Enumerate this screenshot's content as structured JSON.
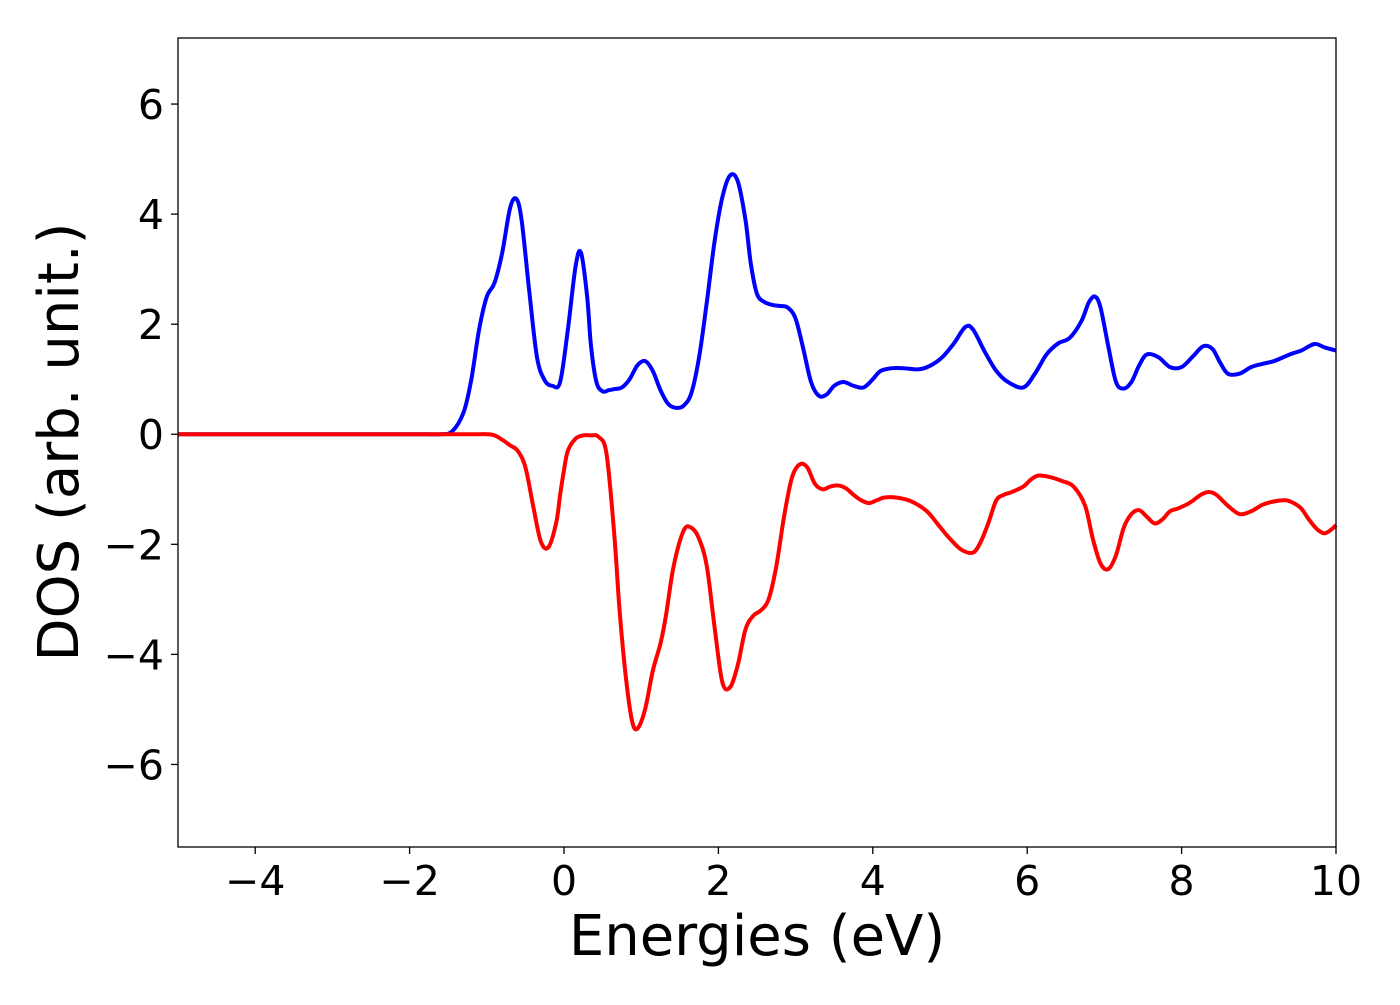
{
  "chart_data": {
    "type": "line",
    "xlabel": "Energies (eV)",
    "ylabel": "DOS (arb. unit.)",
    "xlim": [
      -5,
      10
    ],
    "ylim": [
      -7.5,
      7.2
    ],
    "xticks": [
      -4,
      -2,
      0,
      2,
      4,
      6,
      8,
      10
    ],
    "xtick_labels": [
      "−4",
      "−2",
      "0",
      "2",
      "4",
      "6",
      "8",
      "10"
    ],
    "yticks": [
      -6,
      -4,
      -2,
      0,
      2,
      4,
      6
    ],
    "ytick_labels": [
      "−6",
      "−4",
      "−2",
      "0",
      "2",
      "4",
      "6"
    ],
    "grid": false,
    "series": [
      {
        "color": "#0000ff",
        "x": [
          -5,
          -2,
          -1.8,
          -1.6,
          -1.45,
          -1.3,
          -1.2,
          -1.1,
          -1.0,
          -0.9,
          -0.8,
          -0.7,
          -0.62,
          -0.55,
          -0.45,
          -0.35,
          -0.25,
          -0.15,
          -0.05,
          0.05,
          0.15,
          0.22,
          0.3,
          0.35,
          0.42,
          0.5,
          0.58,
          0.65,
          0.75,
          0.85,
          0.95,
          1.05,
          1.15,
          1.25,
          1.35,
          1.45,
          1.55,
          1.65,
          1.75,
          1.85,
          1.95,
          2.05,
          2.15,
          2.25,
          2.35,
          2.42,
          2.5,
          2.6,
          2.7,
          2.8,
          2.9,
          3.0,
          3.1,
          3.2,
          3.3,
          3.4,
          3.5,
          3.62,
          3.75,
          3.88,
          4.0,
          4.1,
          4.25,
          4.4,
          4.6,
          4.75,
          4.9,
          5.05,
          5.2,
          5.3,
          5.45,
          5.6,
          5.75,
          5.95,
          6.1,
          6.25,
          6.4,
          6.55,
          6.7,
          6.8,
          6.88,
          6.95,
          7.05,
          7.15,
          7.25,
          7.35,
          7.45,
          7.55,
          7.7,
          7.85,
          8.0,
          8.15,
          8.28,
          8.4,
          8.5,
          8.6,
          8.75,
          8.9,
          9.05,
          9.2,
          9.4,
          9.55,
          9.72,
          9.85,
          10.0
        ],
        "y": [
          0,
          0,
          0.0,
          0.0,
          0.05,
          0.4,
          1.0,
          1.9,
          2.5,
          2.75,
          3.3,
          4.1,
          4.28,
          3.9,
          2.6,
          1.4,
          0.98,
          0.88,
          0.95,
          1.9,
          3.05,
          3.3,
          2.5,
          1.6,
          0.95,
          0.78,
          0.8,
          0.82,
          0.85,
          1.0,
          1.25,
          1.33,
          1.15,
          0.8,
          0.55,
          0.48,
          0.52,
          0.75,
          1.4,
          2.4,
          3.5,
          4.3,
          4.7,
          4.6,
          3.9,
          3.1,
          2.55,
          2.4,
          2.35,
          2.33,
          2.3,
          2.1,
          1.55,
          0.95,
          0.7,
          0.72,
          0.88,
          0.95,
          0.88,
          0.85,
          1.0,
          1.15,
          1.2,
          1.2,
          1.18,
          1.25,
          1.4,
          1.65,
          1.95,
          1.9,
          1.5,
          1.15,
          0.95,
          0.85,
          1.1,
          1.45,
          1.65,
          1.75,
          2.05,
          2.4,
          2.5,
          2.3,
          1.6,
          0.95,
          0.83,
          0.95,
          1.25,
          1.45,
          1.4,
          1.22,
          1.22,
          1.42,
          1.6,
          1.55,
          1.3,
          1.1,
          1.1,
          1.22,
          1.28,
          1.33,
          1.45,
          1.52,
          1.64,
          1.58,
          1.52
        ]
      },
      {
        "color": "#ff0000",
        "x": [
          -5,
          -1.5,
          -1.3,
          -1.15,
          -1.0,
          -0.9,
          -0.8,
          -0.7,
          -0.6,
          -0.5,
          -0.4,
          -0.3,
          -0.2,
          -0.1,
          -0.05,
          0.0,
          0.05,
          0.15,
          0.25,
          0.35,
          0.45,
          0.55,
          0.65,
          0.72,
          0.8,
          0.88,
          0.95,
          1.05,
          1.15,
          1.25,
          1.32,
          1.42,
          1.55,
          1.65,
          1.75,
          1.85,
          1.95,
          2.05,
          2.15,
          2.25,
          2.35,
          2.45,
          2.55,
          2.65,
          2.75,
          2.85,
          2.95,
          3.05,
          3.15,
          3.25,
          3.35,
          3.45,
          3.55,
          3.65,
          3.75,
          3.85,
          3.95,
          4.05,
          4.15,
          4.3,
          4.5,
          4.7,
          4.85,
          5.0,
          5.15,
          5.3,
          5.4,
          5.5,
          5.6,
          5.7,
          5.8,
          5.95,
          6.05,
          6.15,
          6.3,
          6.45,
          6.6,
          6.75,
          6.85,
          6.95,
          7.05,
          7.15,
          7.25,
          7.35,
          7.45,
          7.55,
          7.65,
          7.75,
          7.85,
          7.95,
          8.1,
          8.25,
          8.35,
          8.45,
          8.6,
          8.75,
          8.9,
          9.05,
          9.2,
          9.35,
          9.45,
          9.55,
          9.65,
          9.75,
          9.85,
          9.95,
          10.0
        ],
        "y": [
          0,
          0,
          0,
          0,
          0,
          -0.02,
          -0.1,
          -0.2,
          -0.3,
          -0.6,
          -1.3,
          -1.95,
          -2.05,
          -1.6,
          -1.1,
          -0.65,
          -0.3,
          -0.08,
          -0.02,
          -0.02,
          -0.05,
          -0.35,
          -1.8,
          -3.2,
          -4.4,
          -5.2,
          -5.35,
          -5.0,
          -4.3,
          -3.8,
          -3.3,
          -2.4,
          -1.75,
          -1.7,
          -1.9,
          -2.4,
          -3.5,
          -4.5,
          -4.6,
          -4.2,
          -3.55,
          -3.3,
          -3.2,
          -3.0,
          -2.4,
          -1.5,
          -0.8,
          -0.55,
          -0.6,
          -0.9,
          -1.0,
          -0.95,
          -0.93,
          -0.98,
          -1.1,
          -1.2,
          -1.25,
          -1.2,
          -1.15,
          -1.15,
          -1.22,
          -1.4,
          -1.65,
          -1.9,
          -2.1,
          -2.15,
          -1.95,
          -1.6,
          -1.2,
          -1.1,
          -1.05,
          -0.95,
          -0.82,
          -0.75,
          -0.78,
          -0.85,
          -0.95,
          -1.3,
          -1.9,
          -2.35,
          -2.45,
          -2.2,
          -1.7,
          -1.45,
          -1.38,
          -1.5,
          -1.62,
          -1.55,
          -1.4,
          -1.35,
          -1.25,
          -1.1,
          -1.05,
          -1.1,
          -1.3,
          -1.45,
          -1.4,
          -1.28,
          -1.22,
          -1.2,
          -1.25,
          -1.35,
          -1.55,
          -1.72,
          -1.8,
          -1.72,
          -1.65
        ]
      }
    ]
  }
}
